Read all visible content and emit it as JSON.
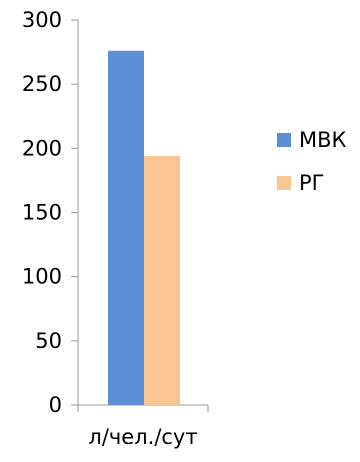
{
  "chart_data": {
    "type": "bar",
    "categories": [
      "л/чел./сут"
    ],
    "series": [
      {
        "name": "МВК",
        "values": [
          276
        ],
        "color": "#5b8fd6"
      },
      {
        "name": "РГ",
        "values": [
          194
        ],
        "color": "#fac493"
      }
    ],
    "ylim": [
      0,
      300
    ],
    "yticks": [
      0,
      50,
      100,
      150,
      200,
      250,
      300
    ],
    "grid": false,
    "legend_position": "right"
  }
}
